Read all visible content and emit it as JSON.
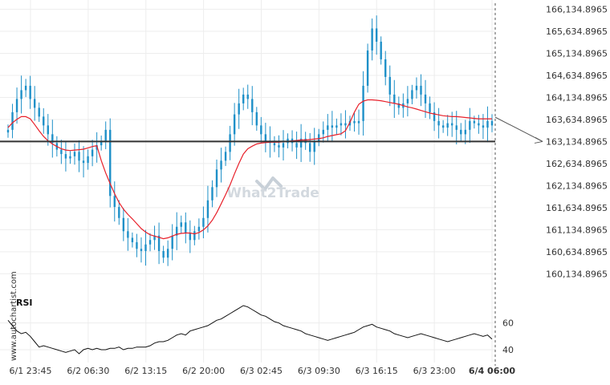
{
  "chart_data": {
    "type": "candlestick",
    "watermark": "What2Trade",
    "side_watermark": "www.autochartist.com",
    "colors": {
      "candle": "#1e90c8",
      "moving_average": "#e8202a",
      "support_line": "#333333",
      "projection_arrow": "#555555",
      "rsi_line": "#111111",
      "watermark": "#c8d0d8",
      "text": "#333333"
    },
    "price_axis": {
      "ticks": [
        "166,134.8965",
        "165,634.8965",
        "165,134.8965",
        "164,634.8965",
        "164,134.8965",
        "163,634.8965",
        "163,134.8965",
        "162,634.8965",
        "162,134.8965",
        "161,634.8965",
        "161,134.8965",
        "160,634.8965",
        "160,134.8965"
      ],
      "tick_values": [
        166134.8965,
        165634.8965,
        165134.8965,
        164634.8965,
        164134.8965,
        163634.8965,
        163134.8965,
        162634.8965,
        162134.8965,
        161634.8965,
        161134.8965,
        160634.8965,
        160134.8965
      ],
      "range": [
        159940,
        166200
      ]
    },
    "time_axis": {
      "labels": [
        "6/1 23:45",
        "6/2 06:30",
        "6/2 13:15",
        "6/2 20:00",
        "6/3 02:45",
        "6/3 09:30",
        "6/3 16:15",
        "6/3 23:00",
        "6/4 06:00"
      ]
    },
    "support_level": 163134.8965,
    "forecast_arrow_target": 163134.8965,
    "closes": [
      163400,
      163800,
      164100,
      164300,
      164400,
      164100,
      163900,
      163700,
      163500,
      163300,
      163100,
      162950,
      162850,
      162750,
      162800,
      162900,
      162700,
      162650,
      162800,
      162950,
      163050,
      163150,
      163400,
      161900,
      161650,
      161400,
      161100,
      160950,
      160850,
      160700,
      160650,
      160800,
      160900,
      161000,
      160650,
      160500,
      160700,
      161000,
      161200,
      161300,
      161050,
      160900,
      161100,
      161200,
      161400,
      161800,
      162100,
      162500,
      162700,
      162900,
      163300,
      163750,
      164000,
      164200,
      164100,
      163800,
      163500,
      163300,
      163150,
      163100,
      163050,
      163000,
      163100,
      163200,
      163100,
      163000,
      163200,
      163100,
      162900,
      163150,
      163300,
      163400,
      163500,
      163450,
      163500,
      163550,
      163500,
      163600,
      163550,
      163600,
      164400,
      165200,
      165700,
      165400,
      165000,
      164600,
      164200,
      164000,
      163900,
      164000,
      164100,
      164300,
      164400,
      164200,
      164000,
      163800,
      163600,
      163500,
      163450,
      163550,
      163500,
      163400,
      163300,
      163400,
      163600,
      163550,
      163500,
      163450,
      163600,
      163500
    ],
    "moving_average": [
      163450,
      163560,
      163640,
      163700,
      163700,
      163650,
      163520,
      163380,
      163250,
      163150,
      163080,
      163020,
      162970,
      162940,
      162930,
      162940,
      162950,
      162960,
      162990,
      163020,
      163040,
      162700,
      162420,
      162180,
      161950,
      161750,
      161600,
      161480,
      161380,
      161270,
      161160,
      161080,
      161020,
      160990,
      160960,
      160930,
      160950,
      160990,
      161030,
      161050,
      161060,
      161060,
      161040,
      161070,
      161130,
      161220,
      161350,
      161520,
      161720,
      161930,
      162150,
      162400,
      162640,
      162850,
      162970,
      163030,
      163080,
      163100,
      163110,
      163120,
      163120,
      163120,
      163130,
      163140,
      163150,
      163160,
      163170,
      163170,
      163180,
      163190,
      163200,
      163220,
      163250,
      163270,
      163290,
      163310,
      163380,
      163570,
      163800,
      163980,
      164050,
      164080,
      164080,
      164070,
      164060,
      164040,
      164020,
      164000,
      163980,
      163950,
      163920,
      163900,
      163870,
      163840,
      163810,
      163780,
      163760,
      163740,
      163720,
      163710,
      163700,
      163700,
      163690,
      163680,
      163670,
      163660,
      163650,
      163650,
      163650,
      163650
    ],
    "rsi": {
      "label": "RSI",
      "ticks": [
        60,
        40
      ],
      "range": [
        34,
        76
      ],
      "values": [
        62,
        58,
        54,
        52,
        53,
        50,
        46,
        42,
        43,
        42,
        41,
        40,
        39,
        38,
        39,
        40,
        37,
        40,
        41,
        40,
        41,
        40,
        40,
        41,
        41,
        42,
        40,
        41,
        41,
        42,
        42,
        42,
        43,
        45,
        46,
        46,
        47,
        49,
        51,
        52,
        51,
        54,
        55,
        56,
        57,
        58,
        60,
        62,
        63,
        65,
        67,
        69,
        71,
        73,
        72,
        70,
        68,
        66,
        65,
        63,
        61,
        60,
        58,
        57,
        56,
        55,
        54,
        52,
        51,
        50,
        49,
        48,
        47,
        48,
        49,
        50,
        51,
        52,
        53,
        55,
        57,
        58,
        59,
        57,
        56,
        55,
        54,
        52,
        51,
        50,
        49,
        50,
        51,
        52,
        51,
        50,
        49,
        48,
        47,
        46,
        47,
        48,
        49,
        50,
        51,
        52,
        51,
        50,
        51,
        48
      ]
    }
  }
}
